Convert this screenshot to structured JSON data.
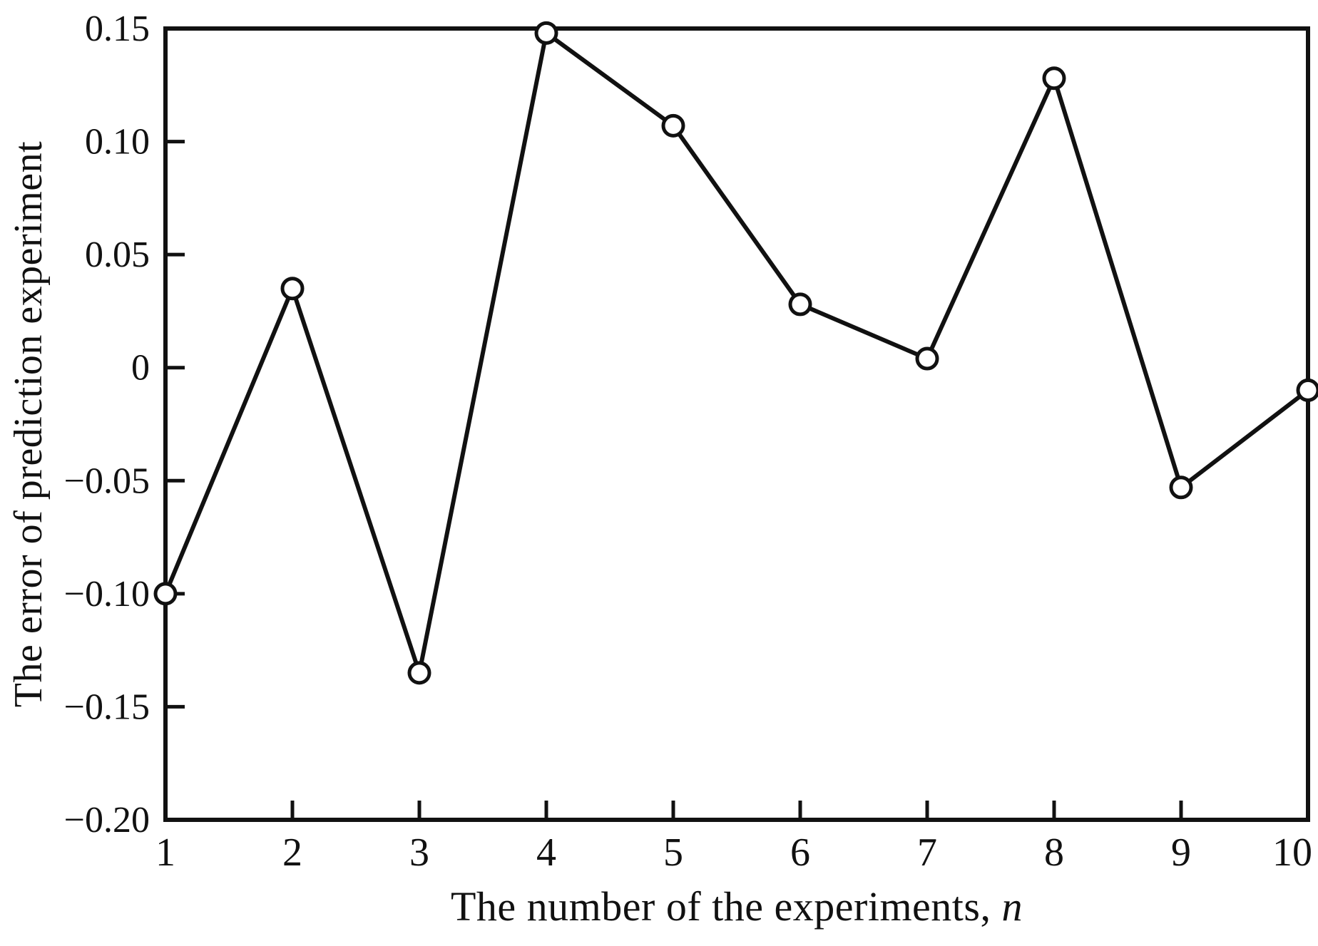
{
  "figure": {
    "background": "#ffffff",
    "line_color": "#111111"
  },
  "chart_data": {
    "type": "line",
    "title": "",
    "xlabel_text": "The number of the experiments, ",
    "xlabel_var": "n",
    "ylabel": "The error of prediction experiment",
    "x": [
      1,
      2,
      3,
      4,
      5,
      6,
      7,
      8,
      9,
      10
    ],
    "y": [
      -0.1,
      0.035,
      -0.135,
      0.148,
      0.107,
      0.028,
      0.004,
      0.128,
      -0.053,
      -0.01
    ],
    "xlim": [
      1,
      10
    ],
    "ylim": [
      -0.2,
      0.15
    ],
    "x_ticks": [
      1,
      2,
      3,
      4,
      5,
      6,
      7,
      8,
      9,
      10
    ],
    "x_tick_labels": [
      "1",
      "2",
      "3",
      "4",
      "5",
      "6",
      "7",
      "8",
      "9",
      "10"
    ],
    "y_ticks": [
      0.15,
      0.1,
      0.05,
      0,
      -0.05,
      -0.1,
      -0.15,
      -0.2
    ],
    "y_tick_labels": [
      "0.15",
      "0.10",
      "0.05",
      "0",
      "−0.05",
      "−0.10",
      "−0.15",
      "−0.20"
    ],
    "marker": "circle-open",
    "grid": false,
    "legend": null
  }
}
